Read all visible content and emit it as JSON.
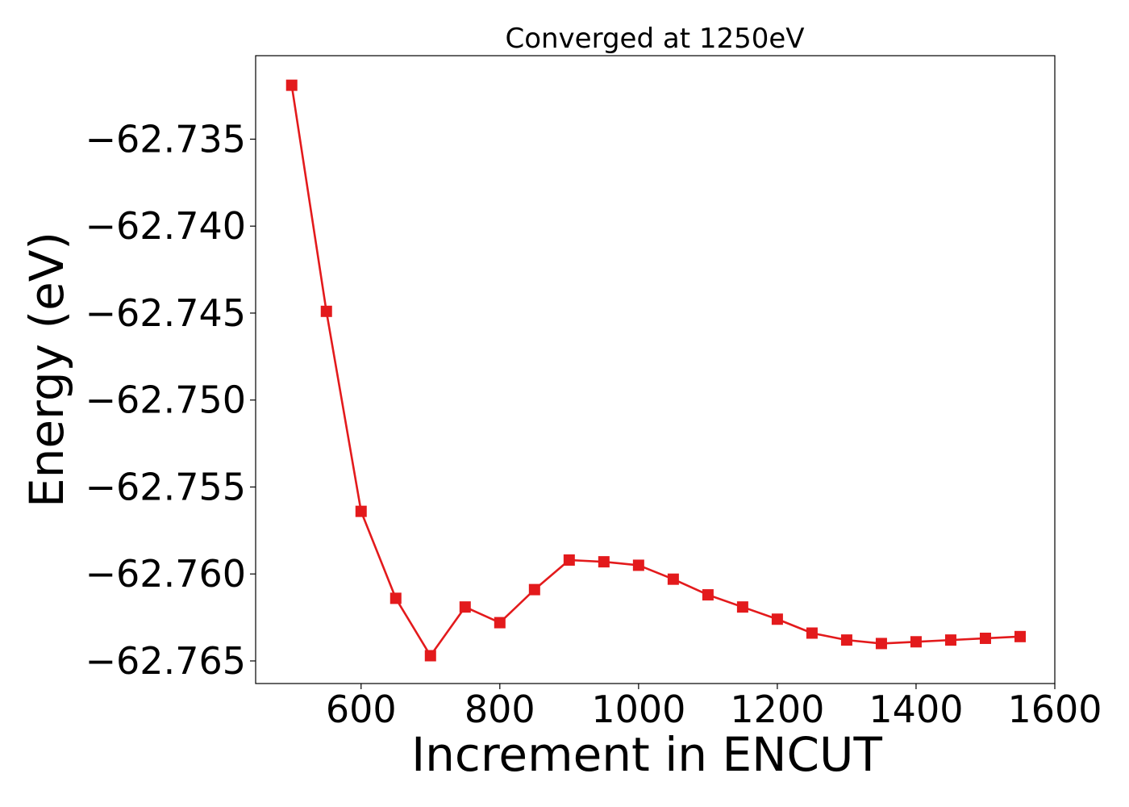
{
  "chart_data": {
    "type": "line",
    "title": "Converged at 1250eV",
    "xlabel": "Increment in ENCUT",
    "ylabel": "Energy (eV)",
    "xlim": [
      448,
      1600
    ],
    "ylim": [
      -62.7663,
      -62.7302
    ],
    "xticks": [
      600,
      800,
      1000,
      1200,
      1400,
      1600
    ],
    "xtick_labels": [
      "600",
      "800",
      "1000",
      "1200",
      "1400",
      "1600"
    ],
    "yticks": [
      -62.735,
      -62.74,
      -62.745,
      -62.75,
      -62.755,
      -62.76,
      -62.765
    ],
    "ytick_labels": [
      "−62.735",
      "−62.740",
      "−62.745",
      "−62.750",
      "−62.755",
      "−62.760",
      "−62.765"
    ],
    "grid": false,
    "series": [
      {
        "color": "#e31a1c",
        "marker": "square",
        "x": [
          500,
          550,
          600,
          650,
          700,
          750,
          800,
          850,
          900,
          950,
          1000,
          1050,
          1100,
          1150,
          1200,
          1250,
          1300,
          1350,
          1400,
          1450,
          1500,
          1550
        ],
        "y": [
          -62.7319,
          -62.7449,
          -62.7564,
          -62.7614,
          -62.7647,
          -62.7619,
          -62.7628,
          -62.7609,
          -62.7592,
          -62.7593,
          -62.7595,
          -62.7603,
          -62.7612,
          -62.7619,
          -62.7626,
          -62.7634,
          -62.7638,
          -62.764,
          -62.7639,
          -62.7638,
          -62.7637,
          -62.7636
        ]
      }
    ]
  }
}
